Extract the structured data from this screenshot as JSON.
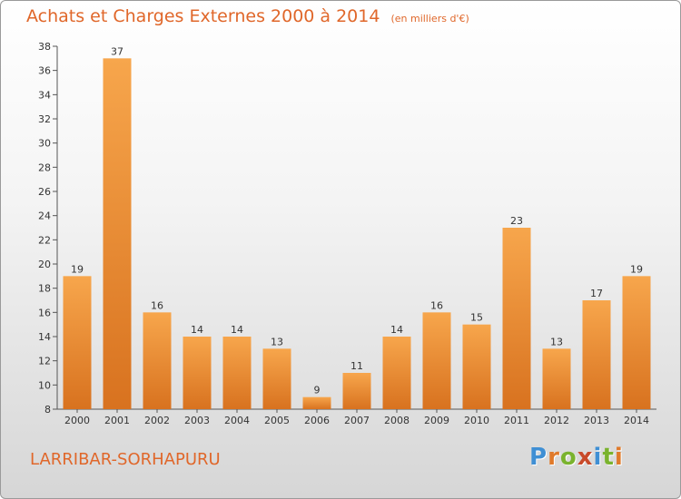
{
  "header": {
    "title": "Achats et Charges Externes 2000 à 2014",
    "unit": "(en milliers d'€)"
  },
  "footer": {
    "commune": "LARRIBAR-SORHAPURU",
    "logo": "Proxiti"
  },
  "colors": {
    "title": "#e0672a",
    "bar_light": "#f7a64c",
    "bar_dark": "#d8721f",
    "logo_letters": [
      "#3f8fd4",
      "#e07a2a",
      "#7ab32e",
      "#c84a2a",
      "#3f8fd4",
      "#7ab32e",
      "#e07a2a"
    ]
  },
  "chart_data": {
    "type": "bar",
    "categories": [
      "2000",
      "2001",
      "2002",
      "2003",
      "2004",
      "2005",
      "2006",
      "2007",
      "2008",
      "2009",
      "2010",
      "2011",
      "2012",
      "2013",
      "2014"
    ],
    "values": [
      19,
      37,
      16,
      14,
      14,
      13,
      9,
      11,
      14,
      16,
      15,
      23,
      13,
      17,
      19
    ],
    "ylim": [
      8,
      38
    ],
    "yticks": [
      8,
      10,
      12,
      14,
      16,
      18,
      20,
      22,
      24,
      26,
      28,
      30,
      32,
      34,
      36,
      38
    ],
    "grid": false,
    "legend": "none",
    "data_labels": true
  }
}
